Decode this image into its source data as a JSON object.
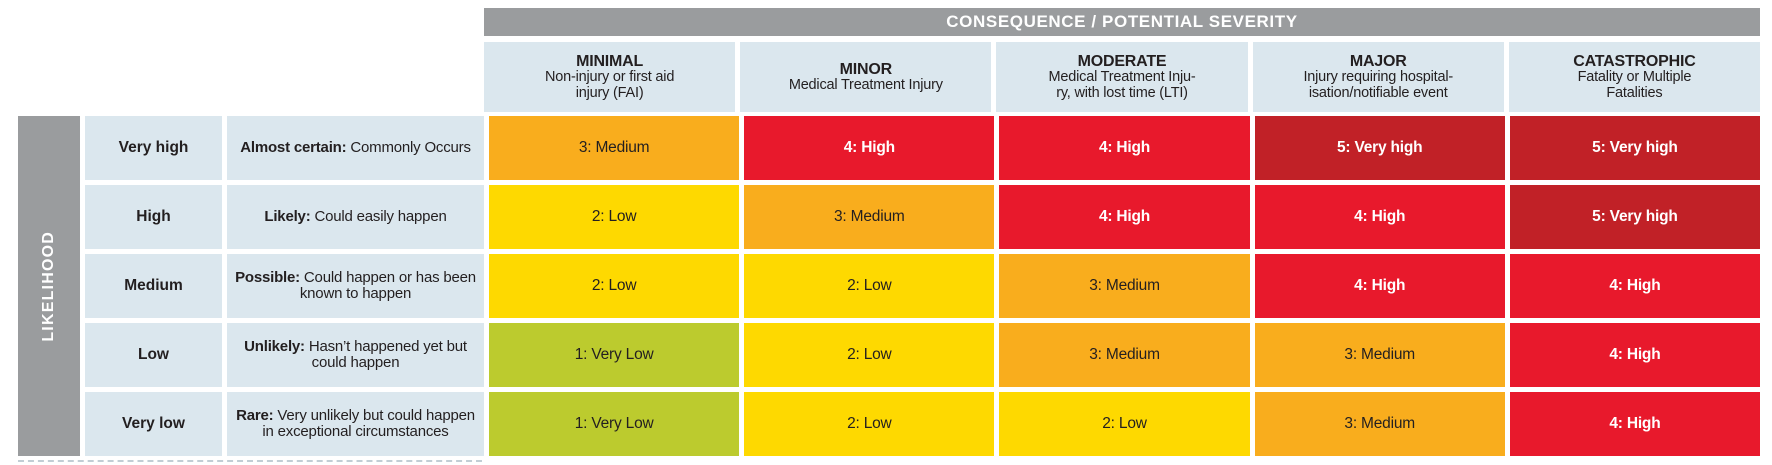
{
  "consequence_header": "CONSEQUENCE / POTENTIAL SEVERITY",
  "likelihood_header": "LIKELIHOOD",
  "palette": {
    "header_gray": "#9a9c9e",
    "header_blue": "#dbe7ee",
    "text_dark": "#231f20",
    "verylow": {
      "bg": "#bccb2e",
      "fg": "#231f20"
    },
    "low": {
      "bg": "#fed900",
      "fg": "#231f20"
    },
    "medium": {
      "bg": "#f9ad1d",
      "fg": "#231f20"
    },
    "high": {
      "bg": "#e8192c",
      "fg": "#ffffff"
    },
    "veryhigh": {
      "bg": "#c12127",
      "fg": "#ffffff"
    }
  },
  "severity_columns": [
    {
      "title": "MINIMAL",
      "subtitle": "Non-injury or first aid\ninjury (FAI)"
    },
    {
      "title": "MINOR",
      "subtitle": "Medical Treatment Injury"
    },
    {
      "title": "MODERATE",
      "subtitle": "Medical Treatment Inju-\nry, with lost time (LTI)"
    },
    {
      "title": "MAJOR",
      "subtitle": "Injury requiring hospital-\nisation/notifiable event"
    },
    {
      "title": "CATASTROPHIC",
      "subtitle": "Fatality or Multiple\nFatalities"
    }
  ],
  "rows": [
    {
      "likelihood": "Very high",
      "descriptor": "Almost certain:",
      "description": "Commonly Occurs",
      "cells": [
        {
          "label": "3: Medium",
          "level": "medium"
        },
        {
          "label": "4: High",
          "level": "high"
        },
        {
          "label": "4: High",
          "level": "high"
        },
        {
          "label": "5: Very high",
          "level": "veryhigh"
        },
        {
          "label": "5: Very high",
          "level": "veryhigh"
        }
      ]
    },
    {
      "likelihood": "High",
      "descriptor": "Likely:",
      "description": "Could easily happen",
      "cells": [
        {
          "label": "2: Low",
          "level": "low"
        },
        {
          "label": "3: Medium",
          "level": "medium"
        },
        {
          "label": "4: High",
          "level": "high"
        },
        {
          "label": "4: High",
          "level": "high"
        },
        {
          "label": "5: Very high",
          "level": "veryhigh"
        }
      ]
    },
    {
      "likelihood": "Medium",
      "descriptor": "Possible:",
      "description": "Could happen or has been known to happen",
      "cells": [
        {
          "label": "2: Low",
          "level": "low"
        },
        {
          "label": "2: Low",
          "level": "low"
        },
        {
          "label": "3: Medium",
          "level": "medium"
        },
        {
          "label": "4: High",
          "level": "high"
        },
        {
          "label": "4: High",
          "level": "high"
        }
      ]
    },
    {
      "likelihood": "Low",
      "descriptor": "Unlikely:",
      "description": "Hasn’t happened yet but could happen",
      "cells": [
        {
          "label": "1: Very Low",
          "level": "verylow"
        },
        {
          "label": "2: Low",
          "level": "low"
        },
        {
          "label": "3: Medium",
          "level": "medium"
        },
        {
          "label": "3: Medium",
          "level": "medium"
        },
        {
          "label": "4: High",
          "level": "high"
        }
      ]
    },
    {
      "likelihood": "Very low",
      "descriptor": "Rare:",
      "description": "Very unlikely but could happen in exceptional circumstances",
      "cells": [
        {
          "label": "1: Very Low",
          "level": "verylow"
        },
        {
          "label": "2: Low",
          "level": "low"
        },
        {
          "label": "2: Low",
          "level": "low"
        },
        {
          "label": "3: Medium",
          "level": "medium"
        },
        {
          "label": "4: High",
          "level": "high"
        }
      ]
    }
  ]
}
